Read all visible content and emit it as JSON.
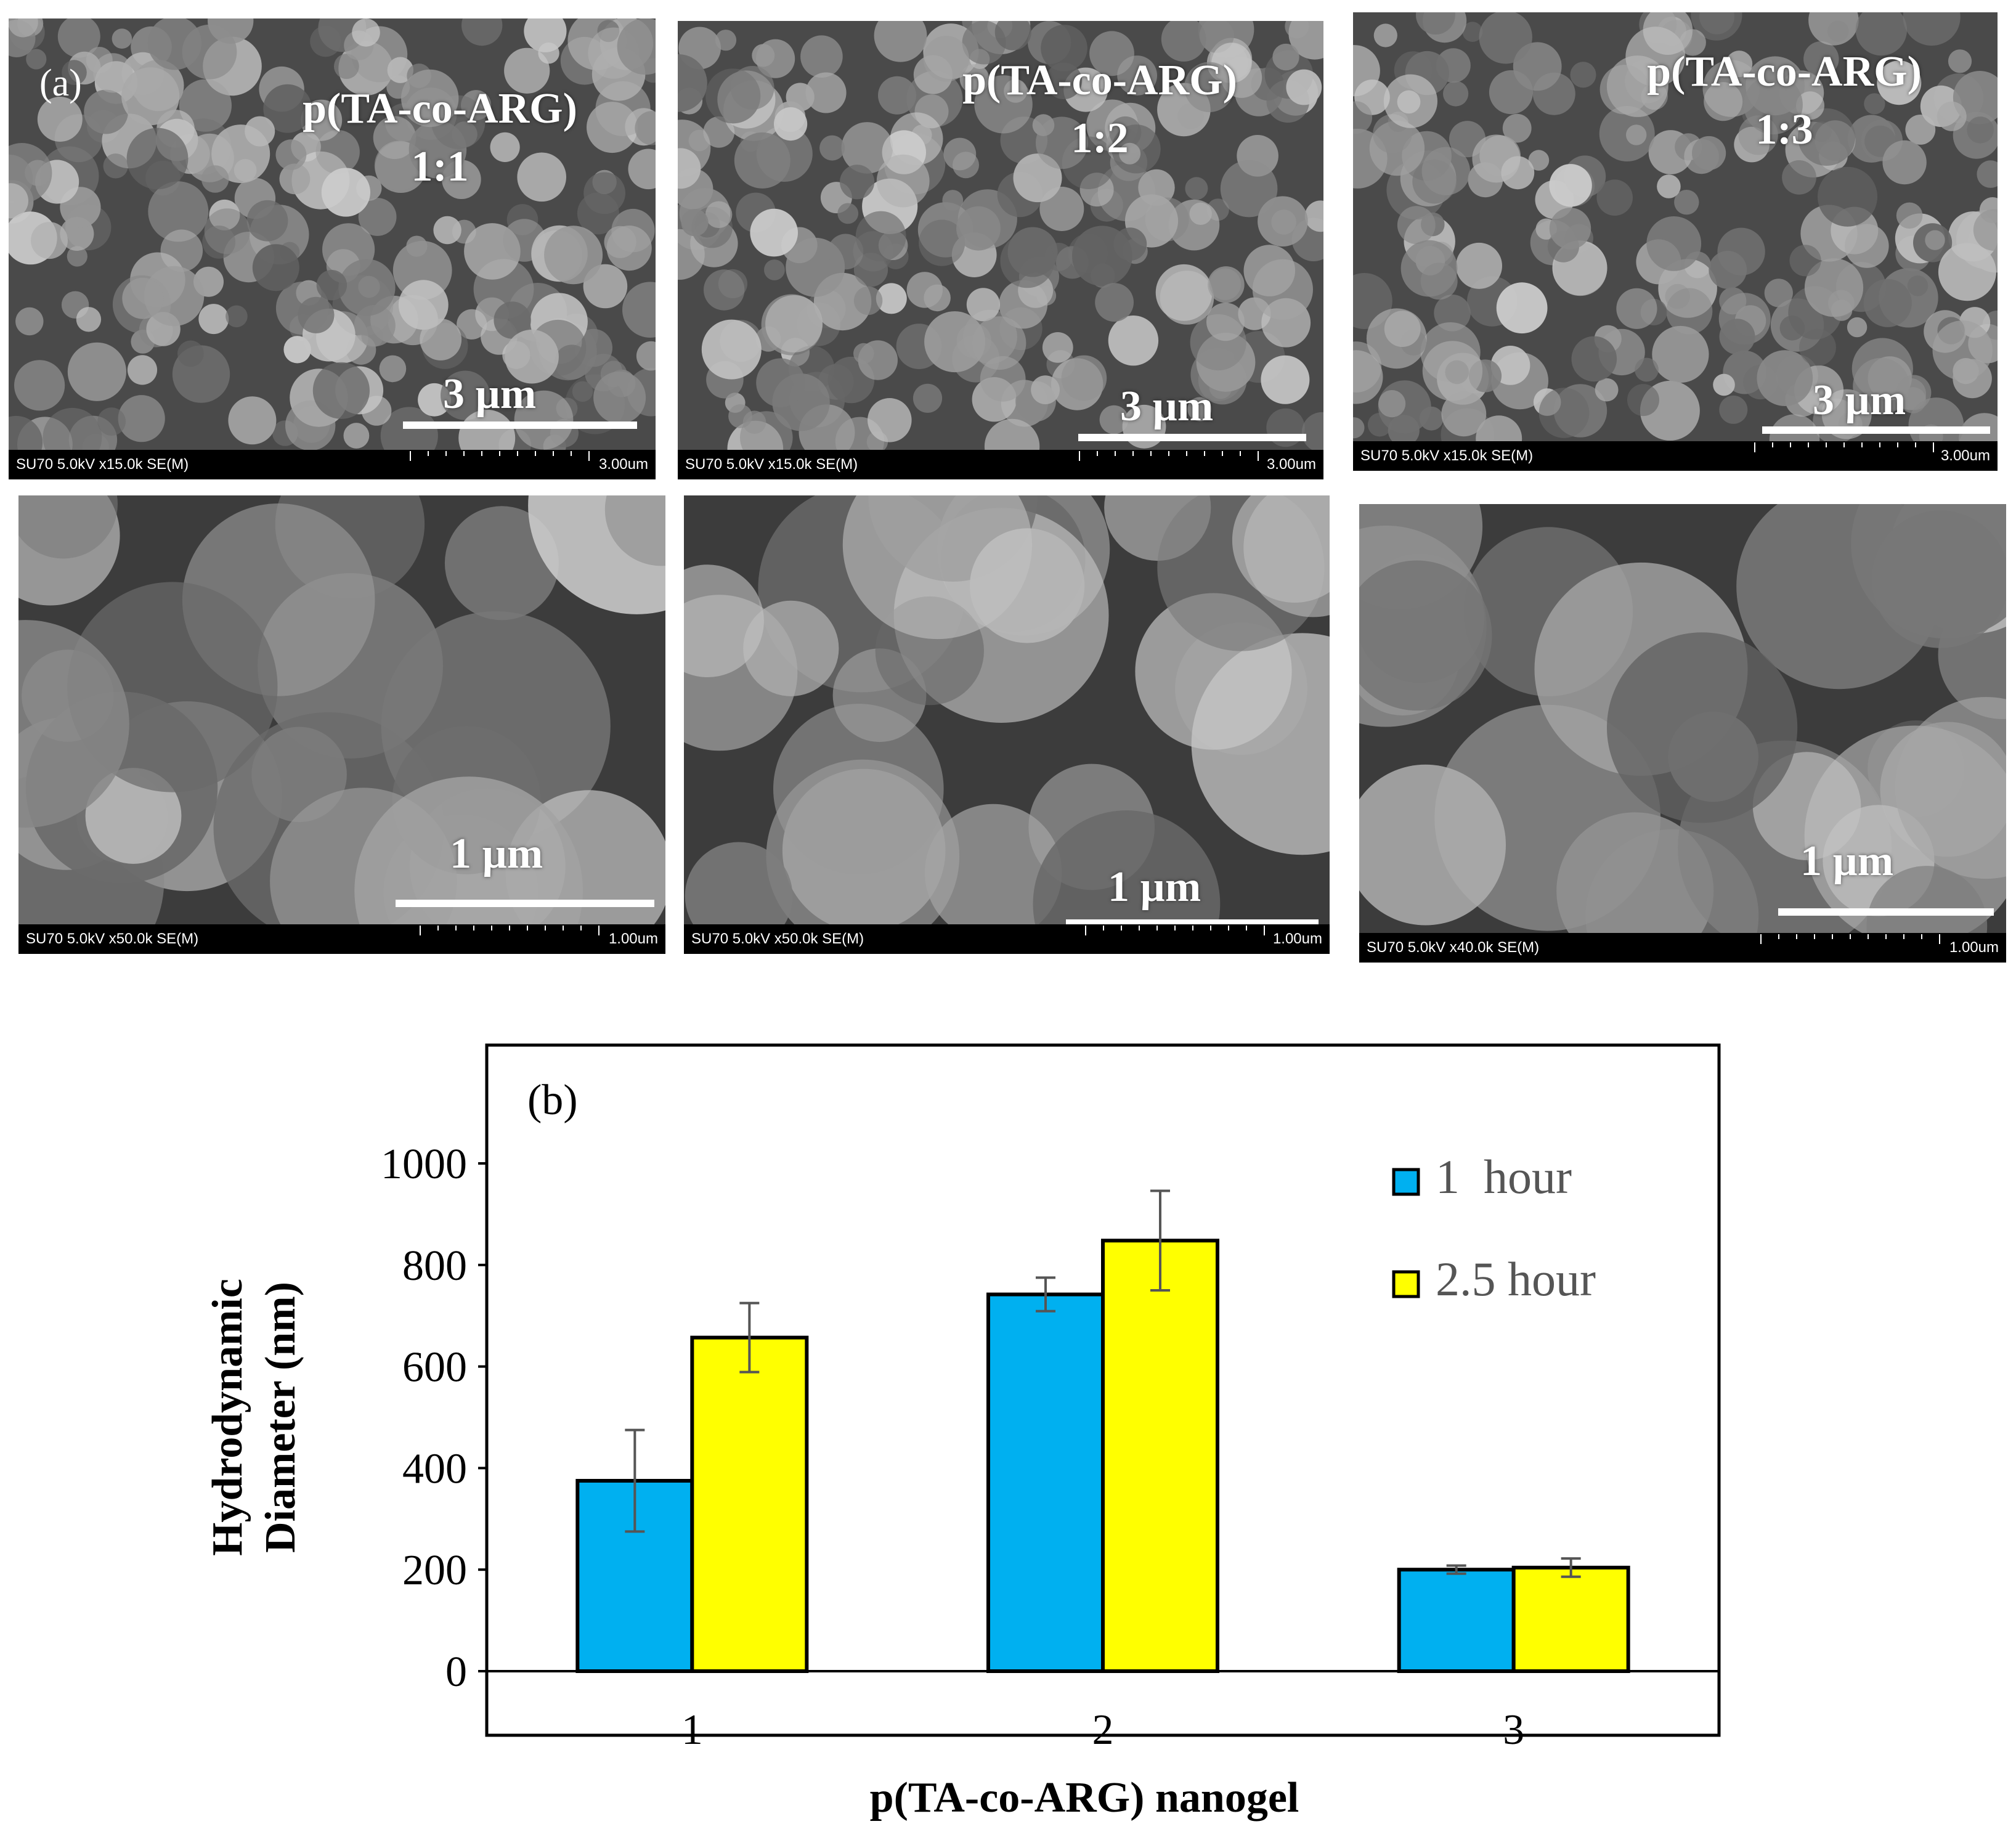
{
  "panel_a_label": "(a)",
  "sem_panels": [
    {
      "id": "p11-low",
      "title_line1": "p(TA-co-ARG)",
      "title_line2": "1:1",
      "scale_label": "3 µm",
      "info_left": "SU70 5.0kV x15.0k SE(M)",
      "info_right": "3.00um"
    },
    {
      "id": "p12-low",
      "title_line1": "p(TA-co-ARG)",
      "title_line2": "1:2",
      "scale_label": "3 µm",
      "info_left": "SU70 5.0kV x15.0k SE(M)",
      "info_right": "3.00um"
    },
    {
      "id": "p13-low",
      "title_line1": "p(TA-co-ARG)",
      "title_line2": "1:3",
      "scale_label": "3 µm",
      "info_left": "SU70 5.0kV x15.0k SE(M)",
      "info_right": "3.00um"
    },
    {
      "id": "p11-high",
      "scale_label": "1 µm",
      "info_left": "SU70 5.0kV x50.0k SE(M)",
      "info_right": "1.00um"
    },
    {
      "id": "p12-high",
      "scale_label": "1 µm",
      "info_left": "SU70 5.0kV x50.0k SE(M)",
      "info_right": "1.00um"
    },
    {
      "id": "p13-high",
      "scale_label": "1 µm",
      "info_left": "SU70 5.0kV x40.0k SE(M)",
      "info_right": "1.00um"
    }
  ],
  "chart_data": {
    "type": "bar",
    "panel_label": "(b)",
    "categories": [
      "1",
      "2",
      "3"
    ],
    "series": [
      {
        "name": "1  hour",
        "color": "#00b0f0",
        "values": [
          375,
          742,
          200
        ],
        "errors": [
          100,
          33,
          8
        ]
      },
      {
        "name": "2.5 hour",
        "color": "#ffff00",
        "values": [
          657,
          848,
          204
        ],
        "errors": [
          68,
          98,
          18
        ]
      }
    ],
    "xlabel": "p(TA-co-ARG) nanogel",
    "ylabel_line1": "Hydrodynamic",
    "ylabel_line2": "Diameter (nm)",
    "yticks": [
      "0",
      "200",
      "400",
      "600",
      "800",
      "1000"
    ],
    "ylim": [
      0,
      1000
    ],
    "grid": false,
    "legend_position": "top-right"
  }
}
